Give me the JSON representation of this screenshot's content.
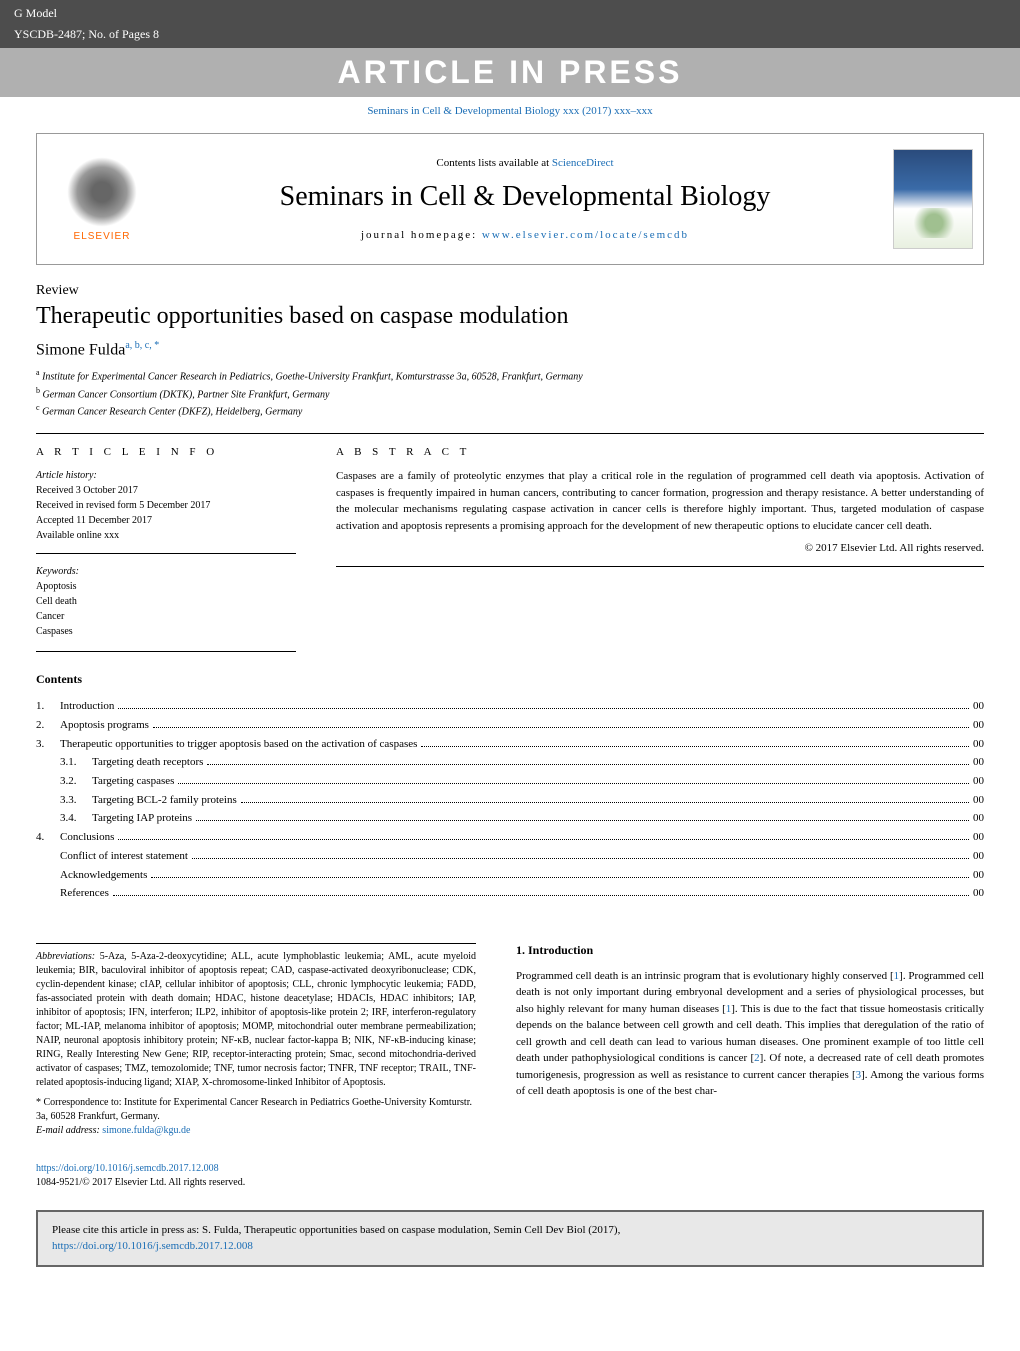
{
  "header": {
    "gmodel": "G Model",
    "ref": "YSCDB-2487;   No. of Pages 8",
    "banner": "ARTICLE IN PRESS",
    "citation": "Seminars in Cell & Developmental Biology xxx (2017) xxx–xxx"
  },
  "journal_box": {
    "elsevier": "ELSEVIER",
    "contents_avail": "Contents lists available at ",
    "sciencedirect": "ScienceDirect",
    "journal_name": "Seminars in Cell & Developmental Biology",
    "homepage_label": "journal homepage: ",
    "homepage_url": "www.elsevier.com/locate/semcdb"
  },
  "article": {
    "type": "Review",
    "title": "Therapeutic opportunities based on caspase modulation",
    "author": "Simone Fulda",
    "author_sup": "a, b, c, *",
    "affiliations": {
      "a": "Institute for Experimental Cancer Research in Pediatrics, Goethe-University Frankfurt, Komturstrasse 3a, 60528, Frankfurt, Germany",
      "b": "German Cancer Consortium (DKTK), Partner Site Frankfurt, Germany",
      "c": "German Cancer Research Center (DKFZ), Heidelberg, Germany"
    }
  },
  "info_heads": {
    "article_info": "A R T I C L E   I N F O",
    "abstract": "A B S T R A C T"
  },
  "history": {
    "label": "Article history:",
    "received": "Received 3 October 2017",
    "revised": "Received in revised form 5 December 2017",
    "accepted": "Accepted 11 December 2017",
    "online": "Available online xxx"
  },
  "keywords": {
    "label": "Keywords:",
    "list": [
      "Apoptosis",
      "Cell death",
      "Cancer",
      "Caspases"
    ]
  },
  "abstract_text": "Caspases are a family of proteolytic enzymes that play a critical role in the regulation of programmed cell death via apoptosis. Activation of caspases is frequently impaired in human cancers, contributing to cancer formation, progression and therapy resistance. A better understanding of the molecular mechanisms regulating caspase activation in cancer cells is therefore highly important. Thus, targeted modulation of caspase activation and apoptosis represents a promising approach for the development of new therapeutic options to elucidate cancer cell death.",
  "copyright": "© 2017 Elsevier Ltd. All rights reserved.",
  "contents": {
    "heading": "Contents",
    "items": [
      {
        "num": "1.",
        "label": "Introduction",
        "page": "00"
      },
      {
        "num": "2.",
        "label": "Apoptosis programs",
        "page": "00"
      },
      {
        "num": "3.",
        "label": "Therapeutic opportunities to trigger apoptosis based on the activation of caspases",
        "page": "00"
      },
      {
        "sub": "3.1.",
        "label": "Targeting death receptors",
        "page": "00"
      },
      {
        "sub": "3.2.",
        "label": "Targeting caspases",
        "page": "00"
      },
      {
        "sub": "3.3.",
        "label": "Targeting BCL-2 family proteins",
        "page": "00"
      },
      {
        "sub": "3.4.",
        "label": "Targeting IAP proteins",
        "page": "00"
      },
      {
        "num": "4.",
        "label": "Conclusions",
        "page": "00"
      },
      {
        "noidx": true,
        "label": "Conflict of interest statement",
        "page": "00"
      },
      {
        "noidx": true,
        "label": "Acknowledgements",
        "page": "00"
      },
      {
        "noidx": true,
        "label": "References",
        "page": "00"
      }
    ]
  },
  "abbreviations": {
    "label": "Abbreviations:",
    "text": "5-Aza, 5-Aza-2-deoxycytidine; ALL, acute lymphoblastic leukemia; AML, acute myeloid leukemia; BIR, baculoviral inhibitor of apoptosis repeat; CAD, caspase-activated deoxyribonuclease; CDK, cyclin-dependent kinase; cIAP, cellular inhibitor of apoptosis; CLL, chronic lymphocytic leukemia; FADD, fas-associated protein with death domain; HDAC, histone deacetylase; HDACIs, HDAC inhibitors; IAP, inhibitor of apoptosis; IFN, interferon; ILP2, inhibitor of apoptosis-like protein 2; IRF, interferon-regulatory factor; ML-IAP, melanoma inhibitor of apoptosis; MOMP, mitochondrial outer membrane permeabilization; NAIP, neuronal apoptosis inhibitory protein; NF-κB, nuclear factor-kappa B; NIK, NF-κB-inducing kinase; RING, Really Interesting New Gene; RIP, receptor-interacting protein; Smac, second mitochondria-derived activator of caspases; TMZ, temozolomide; TNF, tumor necrosis factor; TNFR, TNF receptor; TRAIL, TNF-related apoptosis-inducing ligand; XIAP, X-chromosome-linked Inhibitor of Apoptosis."
  },
  "correspondence": {
    "text": "* Correspondence to: Institute for Experimental Cancer Research in Pediatrics Goethe-University Komturstr. 3a, 60528 Frankfurt, Germany.",
    "email_label": "E-mail address: ",
    "email": "simone.fulda@kgu.de"
  },
  "intro": {
    "heading": "1. Introduction",
    "p1_a": "Programmed cell death is an intrinsic program that is evolutionary highly conserved [",
    "r1": "1",
    "p1_b": "]. Programmed cell death is not only important during embryonal development and a series of physiological processes, but also highly relevant for many human diseases [",
    "r2": "1",
    "p1_c": "]. This is due to the fact that tissue homeostasis critically depends on the balance between cell growth and cell death. This implies that deregulation of the ratio of cell growth and cell death can lead to various human diseases. One prominent example of too little cell death under pathophysiological conditions is cancer [",
    "r3": "2",
    "p1_d": "]. Of note, a decreased rate of cell death promotes tumorigenesis, progression as well as resistance to current cancer therapies [",
    "r4": "3",
    "p1_e": "]. Among the various forms of cell death apoptosis is one of the best char-"
  },
  "doi": {
    "url": "https://doi.org/10.1016/j.semcdb.2017.12.008",
    "issn": "1084-9521/© 2017 Elsevier Ltd. All rights reserved."
  },
  "cite_box": {
    "text_a": "Please cite this article in press as: S. Fulda, Therapeutic opportunities based on caspase modulation, Semin Cell Dev Biol (2017), ",
    "url": "https://doi.org/10.1016/j.semcdb.2017.12.008"
  },
  "colors": {
    "header_bg": "#4d4d4d",
    "banner_bg": "#b0b0b0",
    "link": "#1a6db5",
    "elsevier_orange": "#ff6600",
    "cite_box_bg": "#e8e8e8"
  }
}
